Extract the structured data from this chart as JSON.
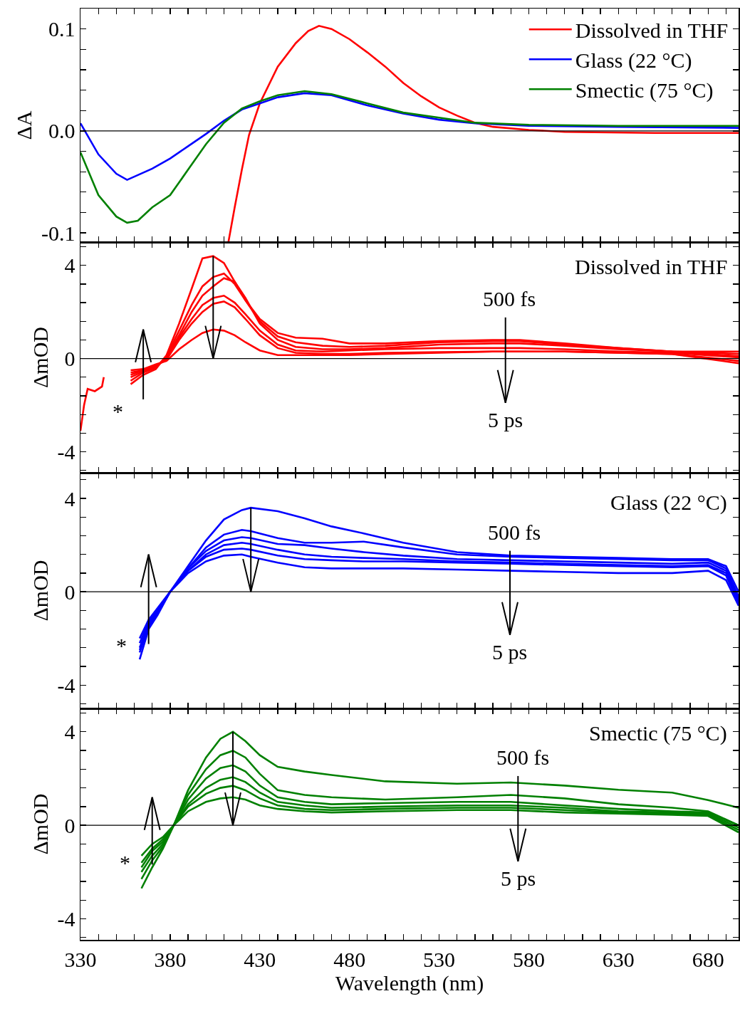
{
  "chart_data": [
    {
      "type": "line",
      "ylabel": "ΔA",
      "xlim": [
        330,
        697
      ],
      "ylim": [
        -0.109,
        0.12
      ],
      "tick_labels": "y",
      "legend": "top right",
      "xticks": [
        330,
        {
          "value": 340,
          "label": null
        },
        {
          "value": 350,
          "label": null
        },
        {
          "value": 360,
          "label": null
        },
        {
          "value": 370,
          "label": null
        },
        380,
        {
          "value": 390,
          "label": null
        },
        {
          "value": 400,
          "label": null
        },
        {
          "value": 410,
          "label": null
        },
        {
          "value": 420,
          "label": null
        },
        430,
        {
          "value": 440,
          "label": null
        },
        {
          "value": 450,
          "label": null
        },
        {
          "value": 460,
          "label": null
        },
        {
          "value": 470,
          "label": null
        },
        480,
        {
          "value": 490,
          "label": null
        },
        {
          "value": 500,
          "label": null
        },
        {
          "value": 510,
          "label": null
        },
        {
          "value": 520,
          "label": null
        },
        530,
        {
          "value": 540,
          "label": null
        },
        {
          "value": 550,
          "label": null
        },
        {
          "value": 560,
          "label": null
        },
        {
          "value": 570,
          "label": null
        },
        580,
        {
          "value": 590,
          "label": null
        },
        {
          "value": 600,
          "label": null
        },
        {
          "value": 610,
          "label": null
        },
        {
          "value": 620,
          "label": null
        },
        630,
        {
          "value": 640,
          "label": null
        },
        {
          "value": 650,
          "label": null
        },
        {
          "value": 660,
          "label": null
        },
        {
          "value": 670,
          "label": null
        },
        680,
        {
          "value": 690,
          "label": null
        }
      ],
      "yticks": [
        -0.1,
        {
          "value": -0.08,
          "label": null
        },
        {
          "value": -0.06,
          "label": null
        },
        {
          "value": -0.04,
          "label": null
        },
        {
          "value": -0.02,
          "label": null
        },
        {
          "value": 0,
          "label": "0.0"
        },
        {
          "value": 0.02,
          "label": null
        },
        {
          "value": 0.04,
          "label": null
        },
        {
          "value": 0.06,
          "label": null
        },
        {
          "value": 0.08,
          "label": null
        },
        0.1
      ],
      "ref_lines": [
        {
          "axis": "y",
          "value": 0,
          "color": "#000000"
        }
      ],
      "series": [
        {
          "name": "Dissolved in THF",
          "color": "#ff0000",
          "x": [
            412.5,
            416,
            420,
            424,
            430,
            440,
            450,
            457,
            463,
            470,
            480,
            490,
            500,
            510,
            520,
            530,
            540,
            550,
            560,
            580,
            600,
            650,
            697
          ],
          "values": [
            -0.109,
            -0.075,
            -0.038,
            -0.004,
            0.027,
            0.063,
            0.086,
            0.098,
            0.103,
            0.1,
            0.09,
            0.077,
            0.063,
            0.047,
            0.034,
            0.023,
            0.015,
            0.008,
            0.004,
            0.001,
            -0.001,
            -0.002,
            -0.002
          ]
        },
        {
          "name": "Glass (22 °C)",
          "color": "#0000ff",
          "x": [
            330,
            340,
            350,
            356,
            370,
            380,
            390,
            400,
            410,
            420,
            430,
            440,
            455,
            470,
            490,
            510,
            530,
            550,
            580,
            630,
            697
          ],
          "values": [
            0.0075,
            -0.023,
            -0.042,
            -0.048,
            -0.037,
            -0.027,
            -0.015,
            -0.003,
            0.01,
            0.021,
            0.027,
            0.033,
            0.037,
            0.035,
            0.025,
            0.017,
            0.011,
            0.0075,
            0.005,
            0.004,
            0.003
          ]
        },
        {
          "name": "Smectic (75 °C)",
          "color": "#008000",
          "x": [
            330,
            340,
            350,
            356,
            362,
            370,
            380,
            390,
            400,
            410,
            420,
            430,
            440,
            455,
            470,
            490,
            510,
            530,
            550,
            580,
            630,
            697
          ],
          "values": [
            -0.021,
            -0.063,
            -0.084,
            -0.09,
            -0.088,
            -0.075,
            -0.063,
            -0.038,
            -0.013,
            0.008,
            0.022,
            0.029,
            0.035,
            0.039,
            0.036,
            0.027,
            0.018,
            0.013,
            0.008,
            0.006,
            0.005,
            0.005
          ]
        }
      ]
    },
    {
      "type": "line",
      "ylabel": "ΔmOD",
      "xlim": [
        330,
        697
      ],
      "ylim": [
        -4.9,
        5
      ],
      "tick_labels": "y",
      "xticks": [
        330,
        {
          "value": 340,
          "label": null
        },
        {
          "value": 350,
          "label": null
        },
        {
          "value": 360,
          "label": null
        },
        {
          "value": 370,
          "label": null
        },
        380,
        {
          "value": 390,
          "label": null
        },
        {
          "value": 400,
          "label": null
        },
        {
          "value": 410,
          "label": null
        },
        {
          "value": 420,
          "label": null
        },
        430,
        {
          "value": 440,
          "label": null
        },
        {
          "value": 450,
          "label": null
        },
        {
          "value": 460,
          "label": null
        },
        {
          "value": 470,
          "label": null
        },
        480,
        {
          "value": 490,
          "label": null
        },
        {
          "value": 500,
          "label": null
        },
        {
          "value": 510,
          "label": null
        },
        {
          "value": 520,
          "label": null
        },
        530,
        {
          "value": 540,
          "label": null
        },
        {
          "value": 550,
          "label": null
        },
        {
          "value": 560,
          "label": null
        },
        {
          "value": 570,
          "label": null
        },
        580,
        {
          "value": 590,
          "label": null
        },
        {
          "value": 600,
          "label": null
        },
        {
          "value": 610,
          "label": null
        },
        {
          "value": 620,
          "label": null
        },
        630,
        {
          "value": 640,
          "label": null
        },
        {
          "value": 650,
          "label": null
        },
        {
          "value": 660,
          "label": null
        },
        {
          "value": 670,
          "label": null
        },
        680,
        {
          "value": 690,
          "label": null
        }
      ],
      "yticks": [
        {
          "value": -4.8,
          "label": null
        },
        -4,
        {
          "value": -3.2,
          "label": null
        },
        {
          "value": -2.4,
          "label": null
        },
        {
          "value": -1.6,
          "label": null
        },
        {
          "value": -0.8,
          "label": null
        },
        0,
        {
          "value": 0.8,
          "label": null
        },
        {
          "value": 1.6,
          "label": null
        },
        {
          "value": 2.4,
          "label": null
        },
        {
          "value": 3.2,
          "label": null
        },
        4,
        {
          "value": 4.8,
          "label": null
        }
      ],
      "ref_lines": [
        {
          "axis": "y",
          "value": 0,
          "color": "#000000"
        }
      ],
      "annotations": [
        "Dissolved in THF",
        "500 fs",
        "5 ps",
        "*"
      ],
      "series": [
        {
          "color": "#ff0000",
          "x": [
            358,
            365,
            372,
            378,
            385,
            392,
            398,
            404,
            410,
            416,
            422,
            430,
            440,
            450,
            465,
            480,
            500,
            530,
            560,
            575,
            600,
            630,
            660,
            697
          ],
          "values": [
            -1.1,
            -0.7,
            -0.45,
            0.15,
            1.5,
            3.0,
            4.3,
            4.4,
            4.1,
            3.3,
            2.5,
            1.7,
            1.1,
            0.9,
            0.85,
            0.65,
            0.65,
            0.75,
            0.8,
            0.8,
            0.65,
            0.45,
            0.3,
            0.3
          ]
        },
        {
          "color": "#ff0000",
          "x": [
            358,
            365,
            372,
            378,
            385,
            392,
            398,
            404,
            410,
            416,
            422,
            430,
            440,
            450,
            465,
            480,
            500,
            530,
            560,
            575,
            600,
            630,
            660,
            697
          ],
          "values": [
            -0.95,
            -0.6,
            -0.4,
            0.1,
            1.2,
            2.3,
            3.1,
            3.5,
            3.65,
            3.2,
            2.5,
            1.6,
            0.95,
            0.7,
            0.55,
            0.5,
            0.55,
            0.7,
            0.75,
            0.75,
            0.6,
            0.45,
            0.3,
            0.2
          ]
        },
        {
          "color": "#ff0000",
          "x": [
            358,
            365,
            372,
            378,
            385,
            392,
            398,
            404,
            410,
            416,
            422,
            430,
            440,
            450,
            465,
            480,
            500,
            530,
            560,
            575,
            600,
            630,
            660,
            697
          ],
          "values": [
            -0.8,
            -0.55,
            -0.35,
            0.05,
            1.0,
            2.0,
            2.7,
            3.1,
            3.45,
            3.3,
            2.6,
            1.5,
            0.8,
            0.5,
            0.4,
            0.4,
            0.45,
            0.6,
            0.65,
            0.65,
            0.55,
            0.4,
            0.3,
            0.1
          ]
        },
        {
          "color": "#ff0000",
          "x": [
            358,
            365,
            372,
            378,
            385,
            392,
            398,
            404,
            410,
            416,
            422,
            430,
            440,
            450,
            465,
            480,
            500,
            530,
            560,
            575,
            600,
            630,
            660,
            697
          ],
          "values": [
            -0.7,
            -0.5,
            -0.35,
            0.0,
            0.9,
            1.7,
            2.3,
            2.6,
            2.7,
            2.4,
            1.9,
            1.2,
            0.6,
            0.35,
            0.3,
            0.35,
            0.4,
            0.45,
            0.45,
            0.45,
            0.4,
            0.3,
            0.25,
            0.05
          ]
        },
        {
          "color": "#ff0000",
          "x": [
            358,
            365,
            372,
            378,
            385,
            392,
            398,
            404,
            410,
            416,
            422,
            430,
            440,
            450,
            465,
            480,
            500,
            530,
            560,
            575,
            600,
            630,
            660,
            697
          ],
          "values": [
            -0.6,
            -0.5,
            -0.3,
            -0.05,
            0.8,
            1.5,
            2.0,
            2.35,
            2.45,
            2.2,
            1.7,
            1.0,
            0.45,
            0.25,
            0.2,
            0.2,
            0.25,
            0.28,
            0.3,
            0.3,
            0.3,
            0.25,
            0.2,
            -0.1
          ]
        },
        {
          "color": "#ff0000",
          "x": [
            358,
            365,
            372,
            378,
            385,
            392,
            398,
            404,
            410,
            416,
            422,
            430,
            440,
            450,
            465,
            480,
            500,
            530,
            560,
            575,
            600,
            630,
            660,
            697
          ],
          "values": [
            -0.5,
            -0.45,
            -0.25,
            -0.1,
            0.4,
            0.8,
            1.1,
            1.25,
            1.2,
            1.0,
            0.7,
            0.35,
            0.15,
            0.15,
            0.15,
            0.15,
            0.2,
            0.25,
            0.3,
            0.3,
            0.3,
            0.25,
            0.2,
            -0.2
          ]
        },
        {
          "color": "#ff0000",
          "x": [
            330,
            332,
            334,
            338,
            342,
            343
          ],
          "values": [
            -3.1,
            -2.0,
            -1.3,
            -1.4,
            -1.2,
            -0.8
          ]
        }
      ]
    },
    {
      "type": "line",
      "ylabel": "ΔmOD",
      "xlim": [
        330,
        697
      ],
      "ylim": [
        -5,
        5.1
      ],
      "tick_labels": "y",
      "xticks": [
        330,
        {
          "value": 340,
          "label": null
        },
        {
          "value": 350,
          "label": null
        },
        {
          "value": 360,
          "label": null
        },
        {
          "value": 370,
          "label": null
        },
        380,
        {
          "value": 390,
          "label": null
        },
        {
          "value": 400,
          "label": null
        },
        {
          "value": 410,
          "label": null
        },
        {
          "value": 420,
          "label": null
        },
        430,
        {
          "value": 440,
          "label": null
        },
        {
          "value": 450,
          "label": null
        },
        {
          "value": 460,
          "label": null
        },
        {
          "value": 470,
          "label": null
        },
        480,
        {
          "value": 490,
          "label": null
        },
        {
          "value": 500,
          "label": null
        },
        {
          "value": 510,
          "label": null
        },
        {
          "value": 520,
          "label": null
        },
        530,
        {
          "value": 540,
          "label": null
        },
        {
          "value": 550,
          "label": null
        },
        {
          "value": 560,
          "label": null
        },
        {
          "value": 570,
          "label": null
        },
        580,
        {
          "value": 590,
          "label": null
        },
        {
          "value": 600,
          "label": null
        },
        {
          "value": 610,
          "label": null
        },
        {
          "value": 620,
          "label": null
        },
        630,
        {
          "value": 640,
          "label": null
        },
        {
          "value": 650,
          "label": null
        },
        {
          "value": 660,
          "label": null
        },
        {
          "value": 670,
          "label": null
        },
        680,
        {
          "value": 690,
          "label": null
        }
      ],
      "yticks": [
        {
          "value": -4.8,
          "label": null
        },
        -4,
        {
          "value": -3.2,
          "label": null
        },
        {
          "value": -2.4,
          "label": null
        },
        {
          "value": -1.6,
          "label": null
        },
        {
          "value": -0.8,
          "label": null
        },
        0,
        {
          "value": 0.8,
          "label": null
        },
        {
          "value": 1.6,
          "label": null
        },
        {
          "value": 2.4,
          "label": null
        },
        {
          "value": 3.2,
          "label": null
        },
        4,
        {
          "value": 4.8,
          "label": null
        }
      ],
      "ref_lines": [
        {
          "axis": "y",
          "value": 0,
          "color": "#000000"
        }
      ],
      "annotations": [
        "Glass (22 °C)",
        "500 fs",
        "5 ps",
        "*"
      ],
      "series": [
        {
          "color": "#0000ff",
          "x": [
            363,
            368,
            373,
            380,
            390,
            400,
            410,
            420,
            425,
            440,
            455,
            470,
            488,
            510,
            540,
            570,
            600,
            630,
            660,
            680,
            690,
            697
          ],
          "values": [
            -2.0,
            -1.2,
            -0.7,
            0.0,
            1.1,
            2.2,
            3.1,
            3.5,
            3.6,
            3.45,
            3.15,
            2.8,
            2.5,
            2.1,
            1.7,
            1.55,
            1.5,
            1.45,
            1.4,
            1.4,
            1.1,
            0.0
          ]
        },
        {
          "color": "#0000ff",
          "x": [
            363,
            368,
            373,
            380,
            390,
            400,
            410,
            420,
            425,
            440,
            455,
            470,
            488,
            510,
            540,
            570,
            600,
            630,
            660,
            680,
            690,
            697
          ],
          "values": [
            -2.2,
            -1.3,
            -0.8,
            0.0,
            1.0,
            1.9,
            2.45,
            2.65,
            2.6,
            2.3,
            2.1,
            2.1,
            2.15,
            1.9,
            1.6,
            1.5,
            1.45,
            1.4,
            1.35,
            1.35,
            1.0,
            -0.2
          ]
        },
        {
          "color": "#0000ff",
          "x": [
            363,
            368,
            373,
            380,
            390,
            400,
            410,
            420,
            425,
            440,
            455,
            470,
            488,
            510,
            540,
            570,
            600,
            630,
            660,
            680,
            690,
            697
          ],
          "values": [
            -2.4,
            -1.4,
            -0.8,
            0.0,
            1.0,
            1.75,
            2.2,
            2.34,
            2.3,
            2.05,
            2.0,
            1.85,
            1.7,
            1.55,
            1.4,
            1.35,
            1.3,
            1.25,
            1.2,
            1.25,
            0.9,
            -0.3
          ]
        },
        {
          "color": "#0000ff",
          "x": [
            363,
            368,
            373,
            380,
            390,
            400,
            410,
            420,
            425,
            440,
            455,
            470,
            488,
            510,
            540,
            570,
            600,
            630,
            660,
            680,
            690,
            697
          ],
          "values": [
            -2.5,
            -1.5,
            -0.9,
            0.0,
            0.9,
            1.6,
            2.0,
            2.1,
            2.05,
            1.8,
            1.6,
            1.5,
            1.45,
            1.4,
            1.3,
            1.25,
            1.2,
            1.15,
            1.1,
            1.15,
            0.8,
            -0.4
          ]
        },
        {
          "color": "#0000ff",
          "x": [
            363,
            368,
            373,
            380,
            390,
            400,
            410,
            420,
            425,
            440,
            455,
            470,
            488,
            510,
            540,
            570,
            600,
            630,
            660,
            680,
            690,
            697
          ],
          "values": [
            -2.6,
            -1.5,
            -0.9,
            0.0,
            0.9,
            1.5,
            1.8,
            1.85,
            1.8,
            1.55,
            1.4,
            1.35,
            1.3,
            1.3,
            1.25,
            1.2,
            1.15,
            1.1,
            1.05,
            1.1,
            0.7,
            -0.5
          ]
        },
        {
          "color": "#0000ff",
          "x": [
            363,
            368,
            373,
            380,
            390,
            400,
            410,
            420,
            425,
            440,
            455,
            470,
            488,
            510,
            540,
            570,
            600,
            630,
            660,
            680,
            690,
            697
          ],
          "values": [
            -2.9,
            -1.6,
            -1.0,
            0.0,
            0.8,
            1.3,
            1.55,
            1.6,
            1.5,
            1.25,
            1.05,
            1.0,
            1.0,
            1.0,
            0.95,
            0.9,
            0.85,
            0.8,
            0.8,
            0.9,
            0.5,
            -0.6
          ]
        }
      ]
    },
    {
      "type": "line",
      "xlabel": "Wavelength (nm)",
      "ylabel": "ΔmOD",
      "xlim": [
        330,
        697
      ],
      "ylim": [
        -4.9,
        5
      ],
      "xticks": [
        330,
        {
          "value": 340,
          "label": null
        },
        {
          "value": 350,
          "label": null
        },
        {
          "value": 360,
          "label": null
        },
        {
          "value": 370,
          "label": null
        },
        380,
        {
          "value": 390,
          "label": null
        },
        {
          "value": 400,
          "label": null
        },
        {
          "value": 410,
          "label": null
        },
        {
          "value": 420,
          "label": null
        },
        430,
        {
          "value": 440,
          "label": null
        },
        {
          "value": 450,
          "label": null
        },
        {
          "value": 460,
          "label": null
        },
        {
          "value": 470,
          "label": null
        },
        480,
        {
          "value": 490,
          "label": null
        },
        {
          "value": 500,
          "label": null
        },
        {
          "value": 510,
          "label": null
        },
        {
          "value": 520,
          "label": null
        },
        530,
        {
          "value": 540,
          "label": null
        },
        {
          "value": 550,
          "label": null
        },
        {
          "value": 560,
          "label": null
        },
        {
          "value": 570,
          "label": null
        },
        580,
        {
          "value": 590,
          "label": null
        },
        {
          "value": 600,
          "label": null
        },
        {
          "value": 610,
          "label": null
        },
        {
          "value": 620,
          "label": null
        },
        630,
        {
          "value": 640,
          "label": null
        },
        {
          "value": 650,
          "label": null
        },
        {
          "value": 660,
          "label": null
        },
        {
          "value": 670,
          "label": null
        },
        680,
        {
          "value": 690,
          "label": null
        }
      ],
      "yticks": [
        {
          "value": -4.8,
          "label": null
        },
        -4,
        {
          "value": -3.2,
          "label": null
        },
        {
          "value": -2.4,
          "label": null
        },
        {
          "value": -1.6,
          "label": null
        },
        {
          "value": -0.8,
          "label": null
        },
        0,
        {
          "value": 0.8,
          "label": null
        },
        {
          "value": 1.6,
          "label": null
        },
        {
          "value": 2.4,
          "label": null
        },
        {
          "value": 3.2,
          "label": null
        },
        4,
        {
          "value": 4.8,
          "label": null
        }
      ],
      "ref_lines": [
        {
          "axis": "y",
          "value": 0,
          "color": "#000000"
        }
      ],
      "annotations": [
        "Smectic (75 °C)",
        "500 fs",
        "5 ps",
        "*"
      ],
      "series": [
        {
          "color": "#008000",
          "x": [
            364,
            370,
            376,
            382,
            390,
            400,
            408,
            415,
            422,
            430,
            440,
            455,
            470,
            500,
            540,
            570,
            600,
            630,
            660,
            680,
            697
          ],
          "values": [
            -1.3,
            -0.8,
            -0.5,
            0.0,
            1.5,
            2.9,
            3.7,
            4.0,
            3.6,
            3.0,
            2.5,
            2.3,
            2.15,
            1.88,
            1.78,
            1.83,
            1.7,
            1.52,
            1.4,
            1.08,
            0.75
          ]
        },
        {
          "color": "#008000",
          "x": [
            364,
            370,
            376,
            382,
            390,
            400,
            408,
            415,
            422,
            430,
            440,
            455,
            470,
            500,
            540,
            570,
            600,
            630,
            660,
            680,
            697
          ],
          "values": [
            -1.6,
            -1.0,
            -0.6,
            0.0,
            1.3,
            2.4,
            3.0,
            3.19,
            2.9,
            2.2,
            1.5,
            1.3,
            1.2,
            1.1,
            1.2,
            1.3,
            1.15,
            0.9,
            0.75,
            0.6,
            0.0
          ]
        },
        {
          "color": "#008000",
          "x": [
            364,
            370,
            376,
            382,
            390,
            400,
            408,
            415,
            422,
            430,
            440,
            455,
            470,
            500,
            540,
            570,
            600,
            630,
            660,
            680,
            697
          ],
          "values": [
            -1.8,
            -1.1,
            -0.7,
            0.0,
            1.1,
            2.0,
            2.45,
            2.57,
            2.3,
            1.7,
            1.2,
            1.0,
            0.9,
            0.95,
            1.0,
            1.0,
            0.85,
            0.7,
            0.6,
            0.55,
            0.0
          ]
        },
        {
          "color": "#008000",
          "x": [
            364,
            370,
            376,
            382,
            390,
            400,
            408,
            415,
            422,
            430,
            440,
            455,
            470,
            500,
            540,
            570,
            600,
            630,
            660,
            680,
            697
          ],
          "values": [
            -2.0,
            -1.3,
            -0.8,
            0.0,
            0.9,
            1.6,
            1.95,
            2.06,
            1.85,
            1.4,
            1.0,
            0.85,
            0.75,
            0.8,
            0.85,
            0.85,
            0.75,
            0.6,
            0.55,
            0.5,
            -0.1
          ]
        },
        {
          "color": "#008000",
          "x": [
            364,
            370,
            376,
            382,
            390,
            400,
            408,
            415,
            422,
            430,
            440,
            455,
            470,
            500,
            540,
            570,
            600,
            630,
            660,
            680,
            697
          ],
          "values": [
            -2.3,
            -1.5,
            -0.9,
            0.0,
            0.8,
            1.35,
            1.6,
            1.69,
            1.5,
            1.15,
            0.85,
            0.7,
            0.65,
            0.7,
            0.75,
            0.75,
            0.65,
            0.55,
            0.5,
            0.45,
            -0.2
          ]
        },
        {
          "color": "#008000",
          "x": [
            364,
            370,
            376,
            382,
            390,
            400,
            408,
            415,
            422,
            430,
            440,
            455,
            470,
            500,
            540,
            570,
            600,
            630,
            660,
            680,
            697
          ],
          "values": [
            -2.7,
            -1.8,
            -1.0,
            0.0,
            0.6,
            1.0,
            1.15,
            1.2,
            1.1,
            0.85,
            0.7,
            0.6,
            0.55,
            0.6,
            0.65,
            0.65,
            0.55,
            0.5,
            0.45,
            0.4,
            -0.3
          ]
        }
      ]
    }
  ]
}
